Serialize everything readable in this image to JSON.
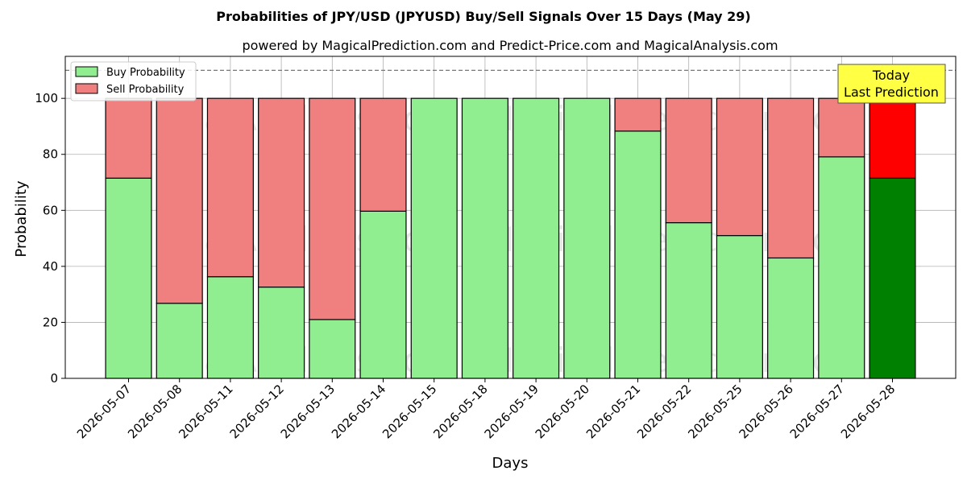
{
  "title": "Probabilities of JPY/USD (JPYUSD) Buy/Sell Signals Over 15 Days (May 29)",
  "subtitle": "powered by MagicalPrediction.com and Predict-Price.com and MagicalAnalysis.com",
  "watermarks": [
    "MagicalAnalysis.com",
    "MagicalPrediction.com"
  ],
  "annotation": {
    "line1": "Today",
    "line2": "Last Prediction"
  },
  "colors": {
    "buy": "#90EE90",
    "sell": "#F08080",
    "buy_last": "#008000",
    "sell_last": "#FF0000",
    "annotation_bg": "#FFFF44",
    "grid": "#b0b0b0"
  },
  "chart_data": {
    "type": "bar",
    "stacked": true,
    "title": "Probabilities of JPY/USD (JPYUSD) Buy/Sell Signals Over 15 Days (May 29)",
    "xlabel": "Days",
    "ylabel": "Probability",
    "ylim": [
      0,
      115
    ],
    "yticks": [
      0,
      20,
      40,
      60,
      80,
      100
    ],
    "reference_line": 110,
    "grid": true,
    "legend": "top-left",
    "categories": [
      "2026-05-07",
      "2026-05-08",
      "2026-05-11",
      "2026-05-12",
      "2026-05-13",
      "2026-05-14",
      "2026-05-15",
      "2026-05-18",
      "2026-05-19",
      "2026-05-20",
      "2026-05-21",
      "2026-05-22",
      "2026-05-25",
      "2026-05-26",
      "2026-05-27",
      "2026-05-28"
    ],
    "series": [
      {
        "name": "Buy Probability",
        "values": [
          71.5,
          26.8,
          36.3,
          32.6,
          21.0,
          59.7,
          100,
          100,
          100,
          100,
          88.3,
          55.6,
          51.0,
          43.0,
          79.1,
          71.5
        ]
      },
      {
        "name": "Sell Probability",
        "values": [
          28.5,
          73.2,
          63.7,
          67.4,
          79.0,
          40.3,
          0,
          0,
          0,
          0,
          11.7,
          44.4,
          49.0,
          57.0,
          20.9,
          28.5
        ]
      }
    ]
  }
}
